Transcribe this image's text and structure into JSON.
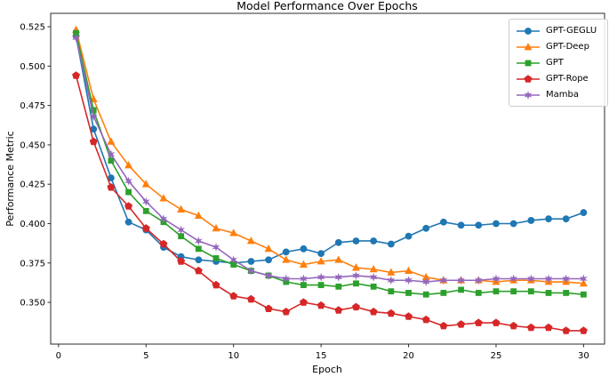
{
  "chart_data": {
    "type": "line",
    "title": "Model Performance Over Epochs",
    "xlabel": "Epoch",
    "ylabel": "Performance Metric",
    "grid": false,
    "legend_position": "upper right",
    "xlim": [
      -0.45,
      31.2
    ],
    "ylim": [
      0.3235,
      0.5335
    ],
    "xticks": [
      0,
      5,
      10,
      15,
      20,
      25,
      30
    ],
    "ytick_labels": [
      "0.350",
      "0.375",
      "0.400",
      "0.425",
      "0.450",
      "0.475",
      "0.500",
      "0.525"
    ],
    "x": [
      1,
      2,
      3,
      4,
      5,
      6,
      7,
      8,
      9,
      10,
      11,
      12,
      13,
      14,
      15,
      16,
      17,
      18,
      19,
      20,
      21,
      22,
      23,
      24,
      25,
      26,
      27,
      28,
      29,
      30
    ],
    "series": [
      {
        "name": "GPT-GEGLU",
        "color": "#1f77b4",
        "marker": "circle",
        "values": [
          0.519,
          0.46,
          0.429,
          0.401,
          0.396,
          0.385,
          0.379,
          0.377,
          0.376,
          0.375,
          0.376,
          0.377,
          0.382,
          0.384,
          0.381,
          0.388,
          0.389,
          0.389,
          0.387,
          0.392,
          0.397,
          0.401,
          0.399,
          0.399,
          0.4,
          0.4,
          0.402,
          0.403,
          0.403,
          0.407
        ]
      },
      {
        "name": "GPT-Deep",
        "color": "#ff7f0e",
        "marker": "triangle-up",
        "values": [
          0.523,
          0.479,
          0.452,
          0.437,
          0.425,
          0.416,
          0.409,
          0.405,
          0.397,
          0.394,
          0.389,
          0.384,
          0.377,
          0.374,
          0.376,
          0.377,
          0.372,
          0.371,
          0.369,
          0.37,
          0.366,
          0.364,
          0.364,
          0.364,
          0.363,
          0.364,
          0.364,
          0.363,
          0.363,
          0.362
        ]
      },
      {
        "name": "GPT",
        "color": "#2ca02c",
        "marker": "square",
        "values": [
          0.521,
          0.472,
          0.44,
          0.42,
          0.408,
          0.401,
          0.392,
          0.384,
          0.378,
          0.374,
          0.37,
          0.367,
          0.363,
          0.361,
          0.361,
          0.36,
          0.362,
          0.36,
          0.357,
          0.356,
          0.355,
          0.356,
          0.358,
          0.356,
          0.357,
          0.357,
          0.357,
          0.356,
          0.356,
          0.355
        ]
      },
      {
        "name": "GPT-Rope",
        "color": "#d62728",
        "marker": "pentagon",
        "values": [
          0.494,
          0.452,
          0.423,
          0.411,
          0.397,
          0.387,
          0.376,
          0.37,
          0.361,
          0.354,
          0.352,
          0.346,
          0.344,
          0.35,
          0.348,
          0.345,
          0.347,
          0.344,
          0.343,
          0.341,
          0.339,
          0.335,
          0.336,
          0.337,
          0.337,
          0.335,
          0.334,
          0.334,
          0.332,
          0.332
        ]
      },
      {
        "name": "Mamba",
        "color": "#9467bd",
        "marker": "star",
        "values": [
          0.518,
          0.468,
          0.444,
          0.427,
          0.414,
          0.403,
          0.396,
          0.389,
          0.385,
          0.377,
          0.37,
          0.367,
          0.365,
          0.365,
          0.366,
          0.366,
          0.367,
          0.366,
          0.364,
          0.364,
          0.363,
          0.364,
          0.364,
          0.364,
          0.365,
          0.365,
          0.365,
          0.365,
          0.365,
          0.365
        ]
      }
    ],
    "axis_color": "#2b2b2b",
    "background_color": "#ffffff"
  }
}
